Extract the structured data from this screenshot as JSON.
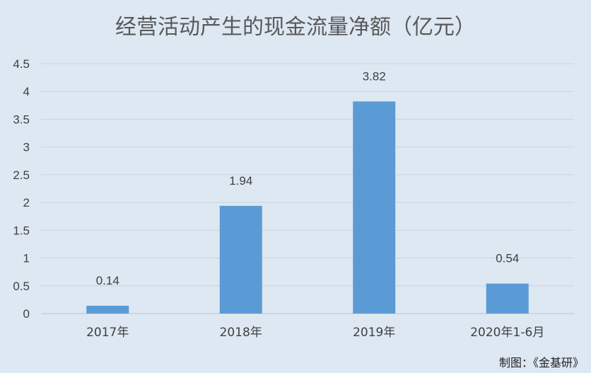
{
  "chart_data": {
    "type": "bar",
    "title": "经营活动产生的现金流量净额（亿元）",
    "categories": [
      "2017年",
      "2018年",
      "2019年",
      "2020年1-6月"
    ],
    "values": [
      0.14,
      1.94,
      3.82,
      0.54
    ],
    "data_labels": [
      "0.14",
      "1.94",
      "3.82",
      "0.54"
    ],
    "ylim": [
      0,
      4.5
    ],
    "yticks": [
      "0",
      "0.5",
      "1",
      "1.5",
      "2",
      "2.5",
      "3",
      "3.5",
      "4",
      "4.5"
    ],
    "grid": true,
    "bar_color": "#5b9bd5",
    "xlabel": "",
    "ylabel": ""
  },
  "credit": "制图：《金基研》",
  "colors": {
    "background": "#dde8f3",
    "gridline": "#c9d3de",
    "text": "#404040"
  }
}
